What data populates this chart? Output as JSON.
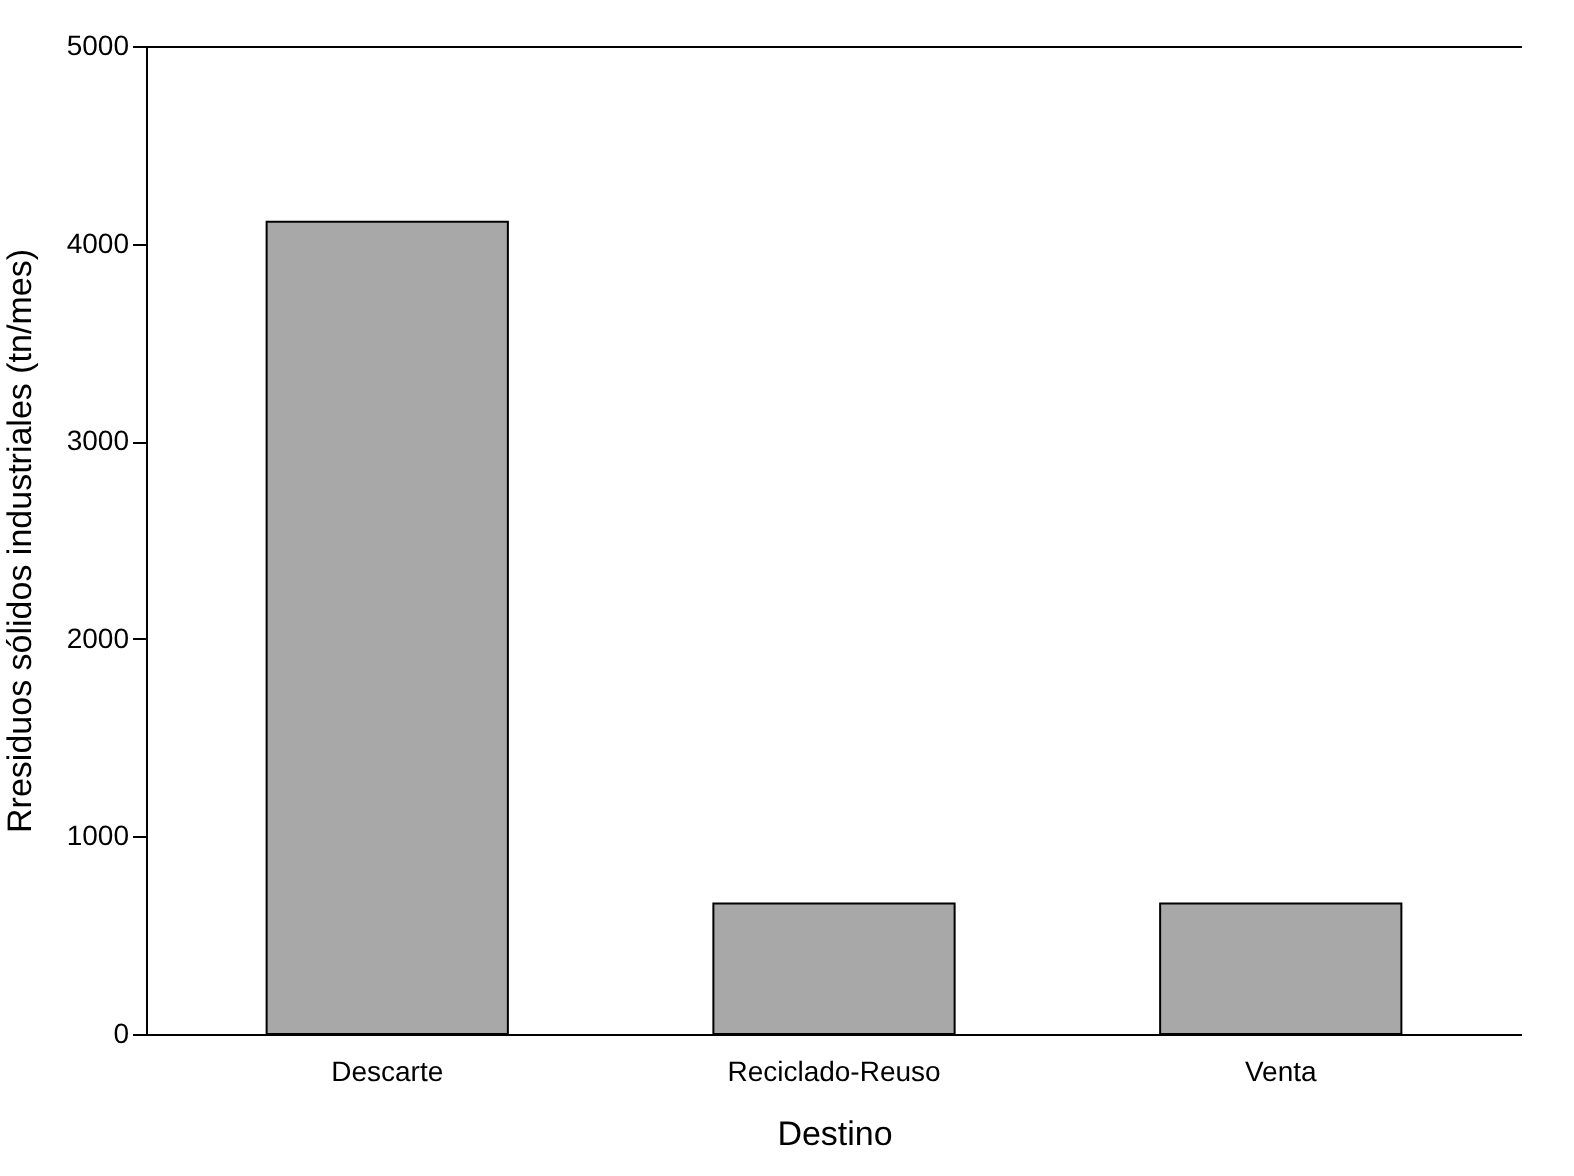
{
  "chart_data": {
    "type": "bar",
    "xlabel": "Destino",
    "ylabel": "Rresiduos sólidos industriales (tn/mes)",
    "categories": [
      "Descarte",
      "Reciclado-Reuso",
      "Venta"
    ],
    "values": [
      4110,
      660,
      660
    ],
    "color": "#a8a8a8",
    "ylim": [
      0,
      5000
    ],
    "yticks": [
      0,
      1000,
      2000,
      3000,
      4000,
      5000
    ],
    "grid": false
  }
}
